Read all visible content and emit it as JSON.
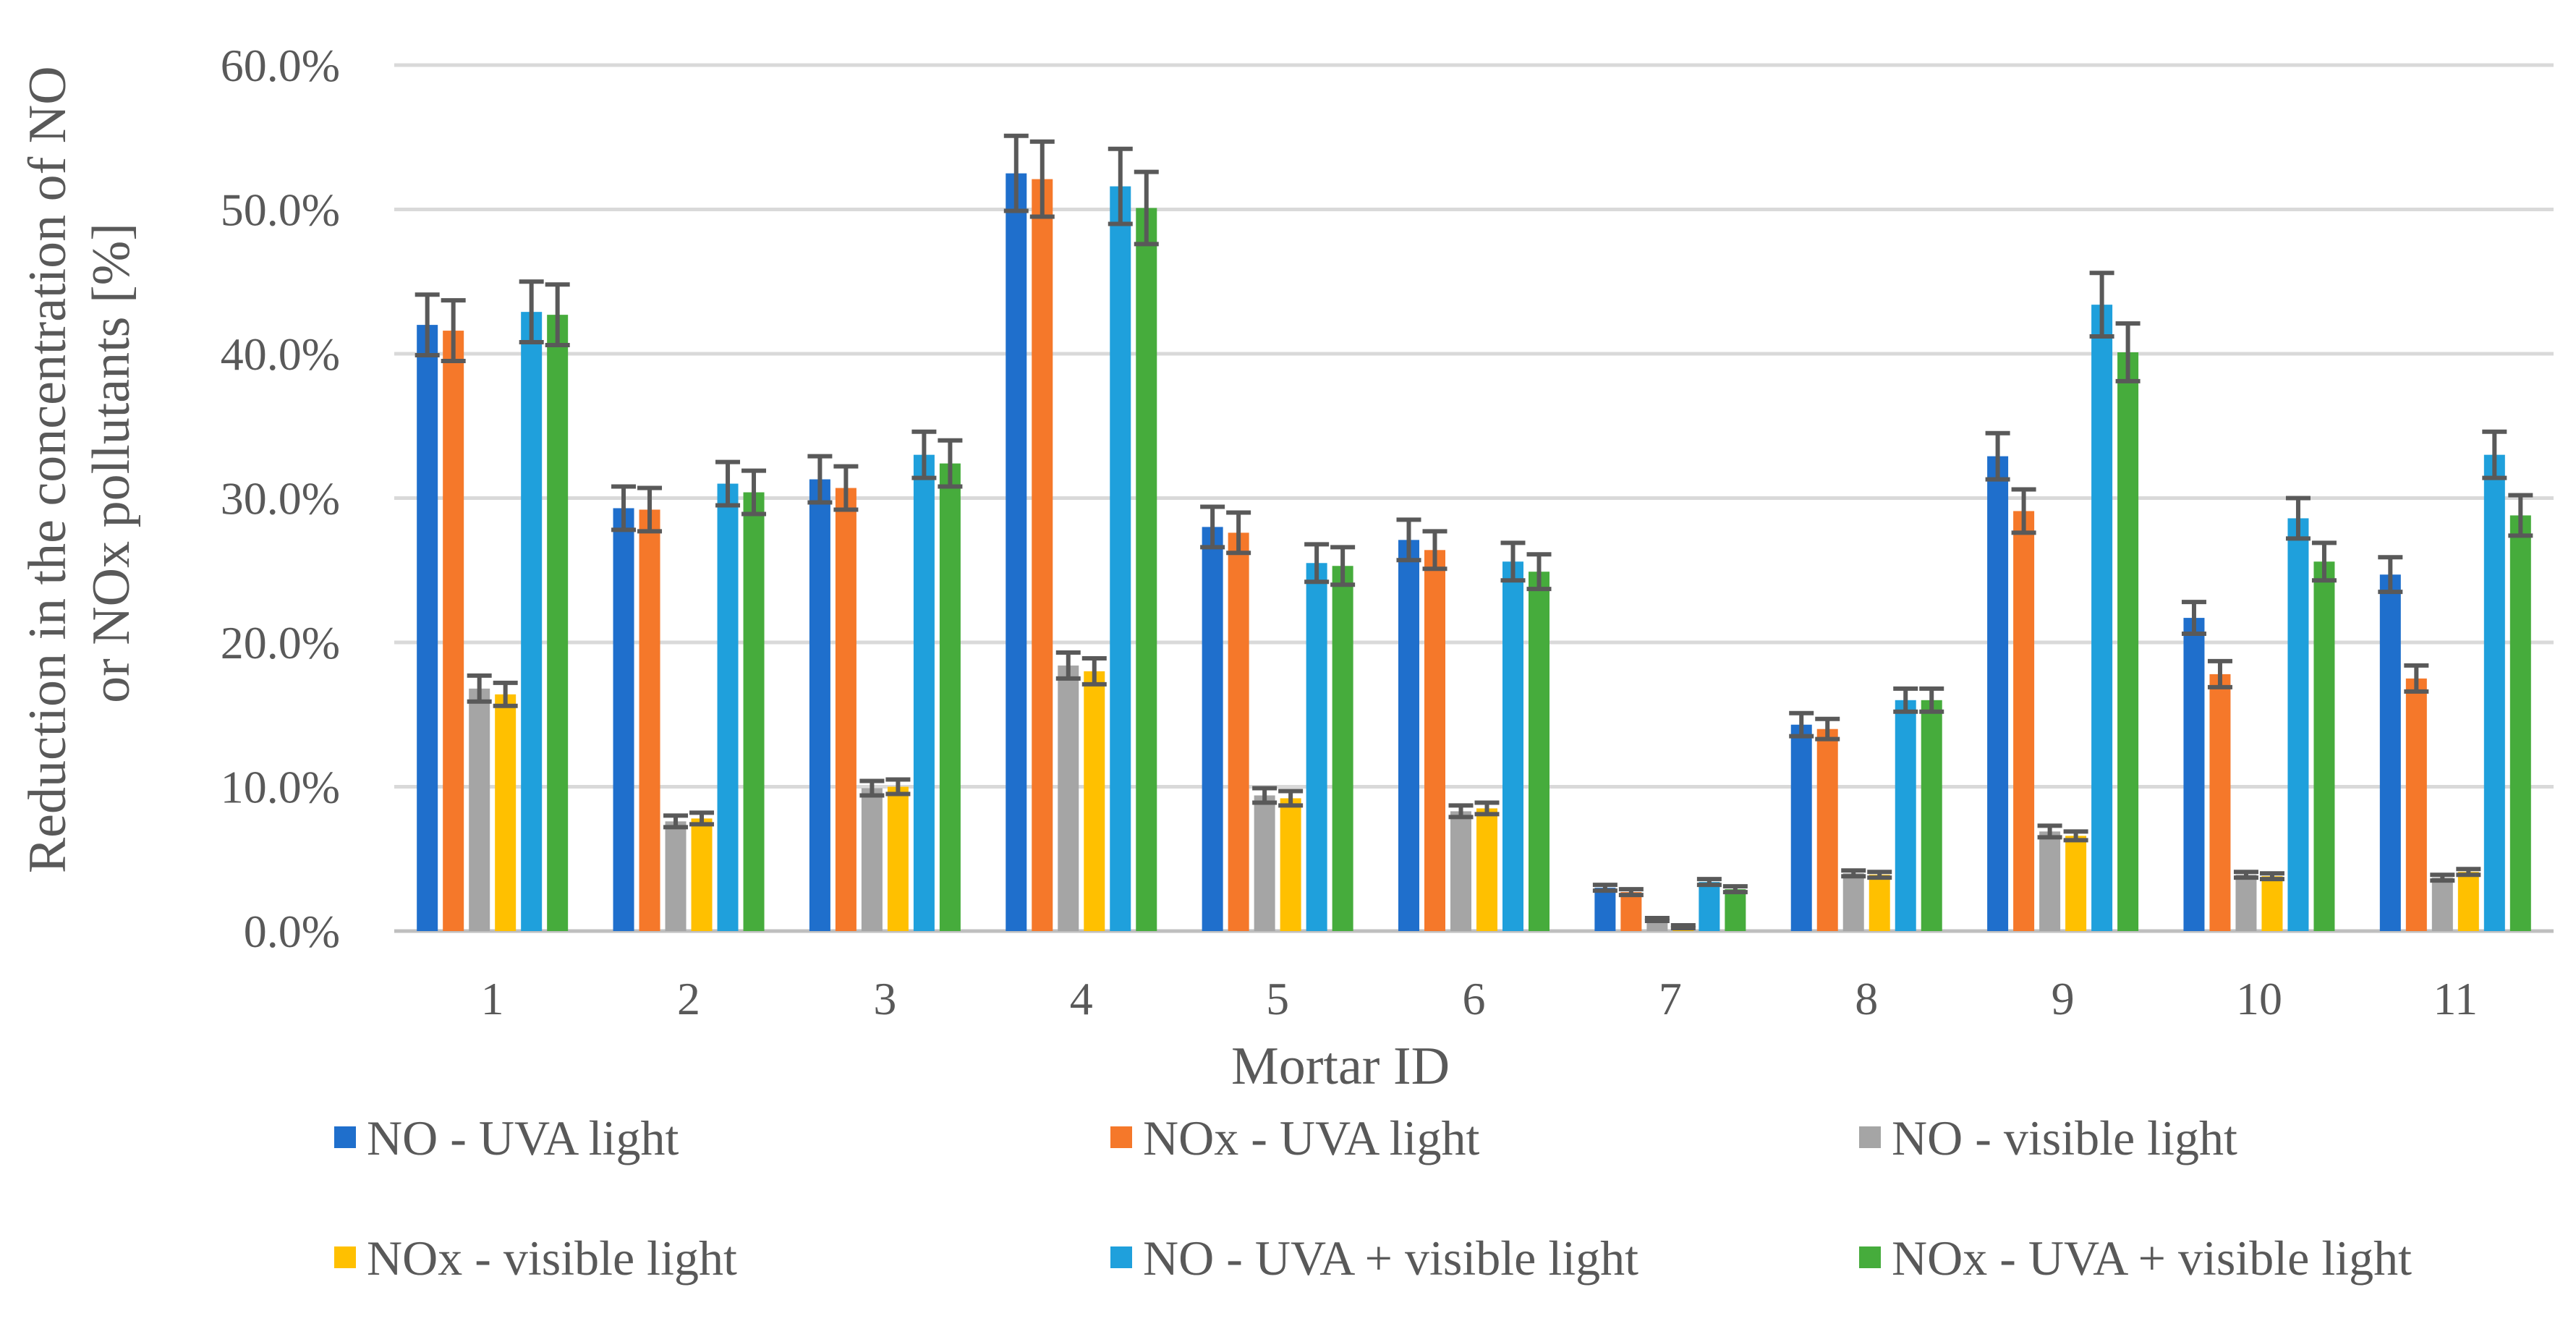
{
  "chart_data": {
    "type": "bar",
    "xlabel": "Mortar ID",
    "ylabel_lines": [
      "Reduction in the concentration of NO",
      "or NOx pollutants [%]"
    ],
    "ylim": [
      0,
      60
    ],
    "yticks": [
      0,
      10,
      20,
      30,
      40,
      50,
      60
    ],
    "ytick_labels": [
      "0.0%",
      "10.0%",
      "20.0%",
      "30.0%",
      "40.0%",
      "50.0%",
      "60.0%"
    ],
    "grid": true,
    "legend_position": "bottom",
    "categories": [
      "1",
      "2",
      "3",
      "4",
      "5",
      "6",
      "7",
      "8",
      "9",
      "10",
      "11"
    ],
    "series": [
      {
        "name": "NO - UVA light",
        "color": "#1f6fcc",
        "values": [
          42.0,
          29.3,
          31.3,
          52.5,
          28.0,
          27.1,
          3.0,
          14.3,
          32.9,
          21.7,
          24.7
        ],
        "errors": [
          2.1,
          1.5,
          1.6,
          2.6,
          1.4,
          1.4,
          0.2,
          0.8,
          1.6,
          1.1,
          1.2
        ]
      },
      {
        "name": "NOx - UVA light",
        "color": "#f5782a",
        "values": [
          41.6,
          29.2,
          30.7,
          52.1,
          27.6,
          26.4,
          2.7,
          14.0,
          29.1,
          17.8,
          17.5
        ],
        "errors": [
          2.1,
          1.5,
          1.5,
          2.6,
          1.4,
          1.3,
          0.2,
          0.7,
          1.5,
          0.9,
          0.9
        ]
      },
      {
        "name": "NO - visible light",
        "color": "#a5a5a5",
        "values": [
          16.8,
          7.6,
          9.9,
          18.4,
          9.4,
          8.3,
          0.8,
          4.0,
          6.9,
          3.9,
          3.7
        ],
        "errors": [
          0.9,
          0.4,
          0.5,
          0.9,
          0.5,
          0.4,
          0.1,
          0.2,
          0.4,
          0.2,
          0.2
        ]
      },
      {
        "name": "NOx - visible light",
        "color": "#ffc000",
        "values": [
          16.4,
          7.8,
          10.0,
          18.0,
          9.2,
          8.5,
          0.3,
          3.9,
          6.6,
          3.8,
          4.1
        ],
        "errors": [
          0.8,
          0.4,
          0.5,
          0.9,
          0.5,
          0.4,
          0.1,
          0.2,
          0.3,
          0.2,
          0.2
        ]
      },
      {
        "name": "NO - UVA + visible light",
        "color": "#1fa0dc",
        "values": [
          42.9,
          31.0,
          33.0,
          51.6,
          25.5,
          25.6,
          3.4,
          16.0,
          43.4,
          28.6,
          33.0
        ],
        "errors": [
          2.1,
          1.5,
          1.6,
          2.6,
          1.3,
          1.3,
          0.2,
          0.8,
          2.2,
          1.4,
          1.6
        ]
      },
      {
        "name": "NOx - UVA + visible light",
        "color": "#46ac3c",
        "values": [
          42.7,
          30.4,
          32.4,
          50.1,
          25.3,
          24.9,
          2.9,
          16.0,
          40.1,
          25.6,
          28.8
        ],
        "errors": [
          2.1,
          1.5,
          1.6,
          2.5,
          1.3,
          1.2,
          0.2,
          0.8,
          2.0,
          1.3,
          1.4
        ]
      }
    ]
  }
}
